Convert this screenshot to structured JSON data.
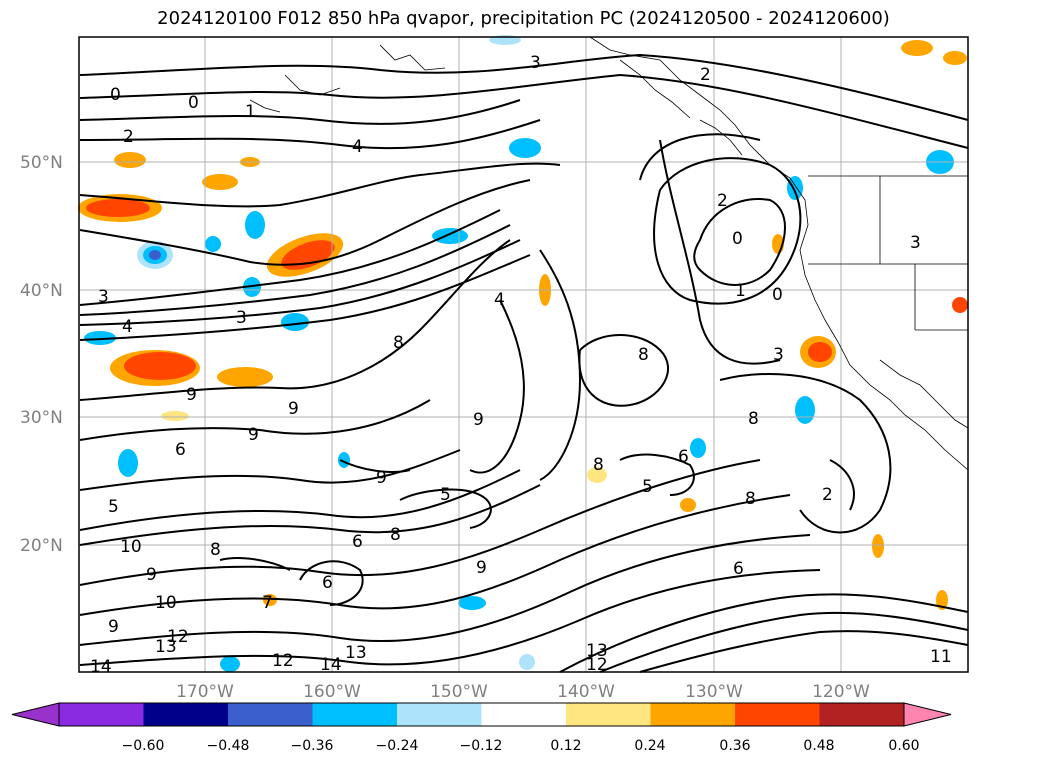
{
  "title": "2024120100 F012 850 hPa qvapor, precipitation PC (2024120500 - 2024120600)",
  "map": {
    "lat_labels": [
      "50°N",
      "40°N",
      "30°N",
      "20°N"
    ],
    "lon_labels": [
      "170°W",
      "160°W",
      "150°W",
      "140°W",
      "130°W",
      "120°W"
    ],
    "contour_labels": [
      "0",
      "0",
      "1",
      "2",
      "4",
      "3",
      "3",
      "2",
      "4",
      "2",
      "0",
      "1",
      "0",
      "3",
      "3",
      "4",
      "3",
      "8",
      "9",
      "9",
      "9",
      "9",
      "6",
      "5",
      "10",
      "9",
      "10",
      "9",
      "12",
      "13",
      "14",
      "12",
      "14",
      "13",
      "13",
      "12",
      "8",
      "6",
      "9",
      "6",
      "5",
      "8",
      "9",
      "8",
      "8",
      "6",
      "5",
      "2",
      "8",
      "11",
      "7",
      "6",
      "8"
    ]
  },
  "colorbar": {
    "ticks": [
      "−0.60",
      "−0.48",
      "−0.36",
      "−0.24",
      "−0.12",
      "0.12",
      "0.24",
      "0.36",
      "0.48",
      "0.60"
    ],
    "colors": [
      "#9932cc",
      "#8a2be2",
      "#00008b",
      "#3a5fcd",
      "#00bfff",
      "#aee4fb",
      "#ffffff",
      "#ffe680",
      "#ffa500",
      "#ff4500",
      "#b22222",
      "#ff85b0"
    ]
  }
}
